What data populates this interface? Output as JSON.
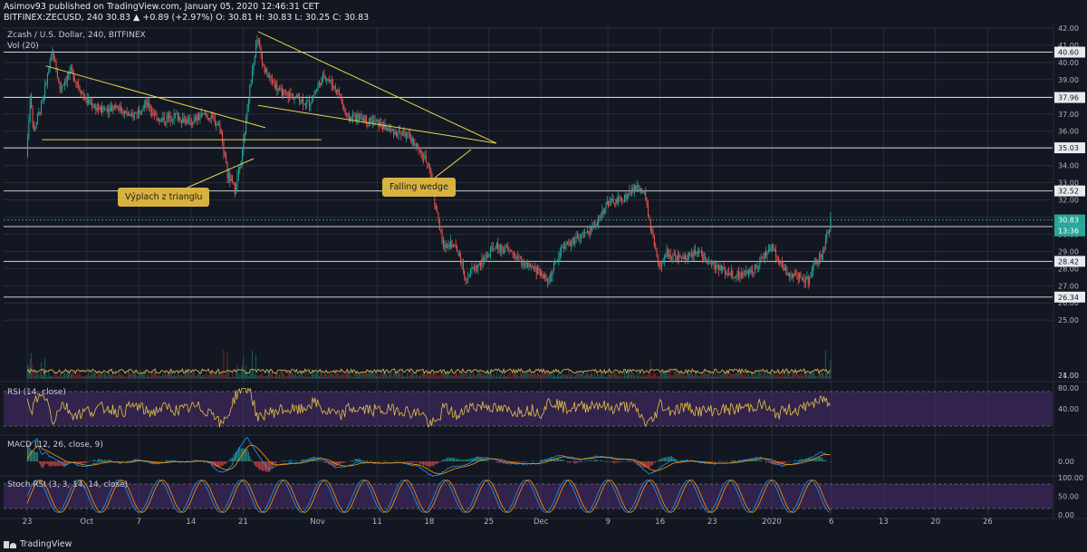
{
  "header": {
    "line1": "Asimov93 published on TradingView.com, January 05, 2020 12:46:31 CET",
    "line2": "BITFINEX:ZECUSD, 240  30.83  ▲ +0.89 (+2.97%)  O: 30.81  H: 30.83  L: 30.25  C: 30.83"
  },
  "footer": {
    "brand": "TradingView"
  },
  "colors": {
    "background": "#131722",
    "grid": "#2a2e39",
    "up": "#26a69a",
    "down": "#ef5350",
    "trendline": "#e8d44d",
    "level_line": "#cfd2da",
    "rsi": "#e8c24a",
    "macd": "#2196f3",
    "signal": "#ff9800",
    "stoch_k": "#2196f3",
    "stoch_d": "#ff9800",
    "band": "#4a2d6e"
  },
  "chart_data": {
    "type": "candlestick",
    "title": "Zcash / U.S. Dollar, 240, BITFINEX",
    "volume_label": "Vol (20)",
    "x_ticks": [
      "23",
      "Oct",
      "7",
      "14",
      "21",
      "Nov",
      "11",
      "18",
      "25",
      "Dec",
      "9",
      "16",
      "23",
      "2020",
      "6",
      "13",
      "20",
      "26"
    ],
    "y_ticks": [
      21.0,
      24.0,
      25.0,
      26.0,
      27.0,
      28.0,
      29.0,
      30.0,
      31.0,
      32.0,
      33.0,
      34.0,
      35.0,
      36.0,
      37.0,
      38.0,
      39.0,
      40.0,
      41.0,
      42.0
    ],
    "ylim": [
      21.0,
      42.0
    ],
    "horizontal_levels": [
      40.6,
      37.96,
      35.03,
      32.52,
      30.44,
      28.42,
      26.34
    ],
    "last_price_label": "30.83",
    "countdown_label": "13:36",
    "price_path": [
      {
        "d": 0,
        "p": 34.5
      },
      {
        "d": 0.5,
        "p": 38.0
      },
      {
        "d": 1,
        "p": 36.0
      },
      {
        "d": 2,
        "p": 37.5
      },
      {
        "d": 3.5,
        "p": 40.6
      },
      {
        "d": 4.5,
        "p": 38.5
      },
      {
        "d": 6,
        "p": 39.5
      },
      {
        "d": 8,
        "p": 37.8
      },
      {
        "d": 10,
        "p": 37.2
      },
      {
        "d": 12,
        "p": 37.5
      },
      {
        "d": 14,
        "p": 36.8
      },
      {
        "d": 16,
        "p": 37.6
      },
      {
        "d": 18,
        "p": 36.6
      },
      {
        "d": 20,
        "p": 36.9
      },
      {
        "d": 22,
        "p": 36.5
      },
      {
        "d": 24,
        "p": 37.0
      },
      {
        "d": 26,
        "p": 36.3
      },
      {
        "d": 27,
        "p": 33.5
      },
      {
        "d": 28,
        "p": 32.6
      },
      {
        "d": 29,
        "p": 34.8
      },
      {
        "d": 30,
        "p": 38.5
      },
      {
        "d": 31,
        "p": 41.5
      },
      {
        "d": 32,
        "p": 39.5
      },
      {
        "d": 34,
        "p": 38.3
      },
      {
        "d": 36,
        "p": 38.0
      },
      {
        "d": 38,
        "p": 37.6
      },
      {
        "d": 40,
        "p": 39.3
      },
      {
        "d": 42,
        "p": 38.2
      },
      {
        "d": 43,
        "p": 36.8
      },
      {
        "d": 45,
        "p": 36.8
      },
      {
        "d": 47,
        "p": 36.5
      },
      {
        "d": 49,
        "p": 36.0
      },
      {
        "d": 51,
        "p": 35.8
      },
      {
        "d": 52,
        "p": 35.4
      },
      {
        "d": 53,
        "p": 34.6
      },
      {
        "d": 54,
        "p": 34.2
      },
      {
        "d": 55,
        "p": 31.5
      },
      {
        "d": 56,
        "p": 29.2
      },
      {
        "d": 57,
        "p": 29.5
      },
      {
        "d": 58,
        "p": 29.0
      },
      {
        "d": 59,
        "p": 27.5
      },
      {
        "d": 60,
        "p": 28.0
      },
      {
        "d": 61,
        "p": 28.3
      },
      {
        "d": 63,
        "p": 29.3
      },
      {
        "d": 65,
        "p": 29.0
      },
      {
        "d": 67,
        "p": 28.2
      },
      {
        "d": 69,
        "p": 27.8
      },
      {
        "d": 70,
        "p": 27.2
      },
      {
        "d": 72,
        "p": 29.3
      },
      {
        "d": 74,
        "p": 29.7
      },
      {
        "d": 76,
        "p": 30.3
      },
      {
        "d": 78,
        "p": 31.8
      },
      {
        "d": 80,
        "p": 32.0
      },
      {
        "d": 82,
        "p": 32.8
      },
      {
        "d": 83,
        "p": 32.3
      },
      {
        "d": 84,
        "p": 30.0
      },
      {
        "d": 85,
        "p": 28.0
      },
      {
        "d": 86,
        "p": 28.9
      },
      {
        "d": 88,
        "p": 28.5
      },
      {
        "d": 90,
        "p": 29.0
      },
      {
        "d": 92,
        "p": 28.3
      },
      {
        "d": 94,
        "p": 27.8
      },
      {
        "d": 96,
        "p": 27.6
      },
      {
        "d": 98,
        "p": 28.1
      },
      {
        "d": 100,
        "p": 29.3
      },
      {
        "d": 102,
        "p": 27.8
      },
      {
        "d": 104,
        "p": 27.5
      },
      {
        "d": 105,
        "p": 27.3
      },
      {
        "d": 106,
        "p": 28.3
      },
      {
        "d": 107,
        "p": 29.0
      },
      {
        "d": 108,
        "p": 30.8
      }
    ],
    "annotations": [
      {
        "text": "Výplach z trianglu",
        "type": "callout"
      },
      {
        "text": "Falling wedge",
        "type": "callout"
      }
    ],
    "indicators": {
      "rsi": {
        "label": "RSI (14, close)",
        "ticks": [
          "80.00",
          "40.00"
        ]
      },
      "macd": {
        "label": "MACD (12, 26, close, 9)",
        "ticks": [
          "0.00"
        ]
      },
      "stoch_rsi": {
        "label": "Stoch RSI (3, 3, 14, 14, close)",
        "ticks": [
          "100.00",
          "50.00",
          "0.00"
        ]
      }
    }
  }
}
